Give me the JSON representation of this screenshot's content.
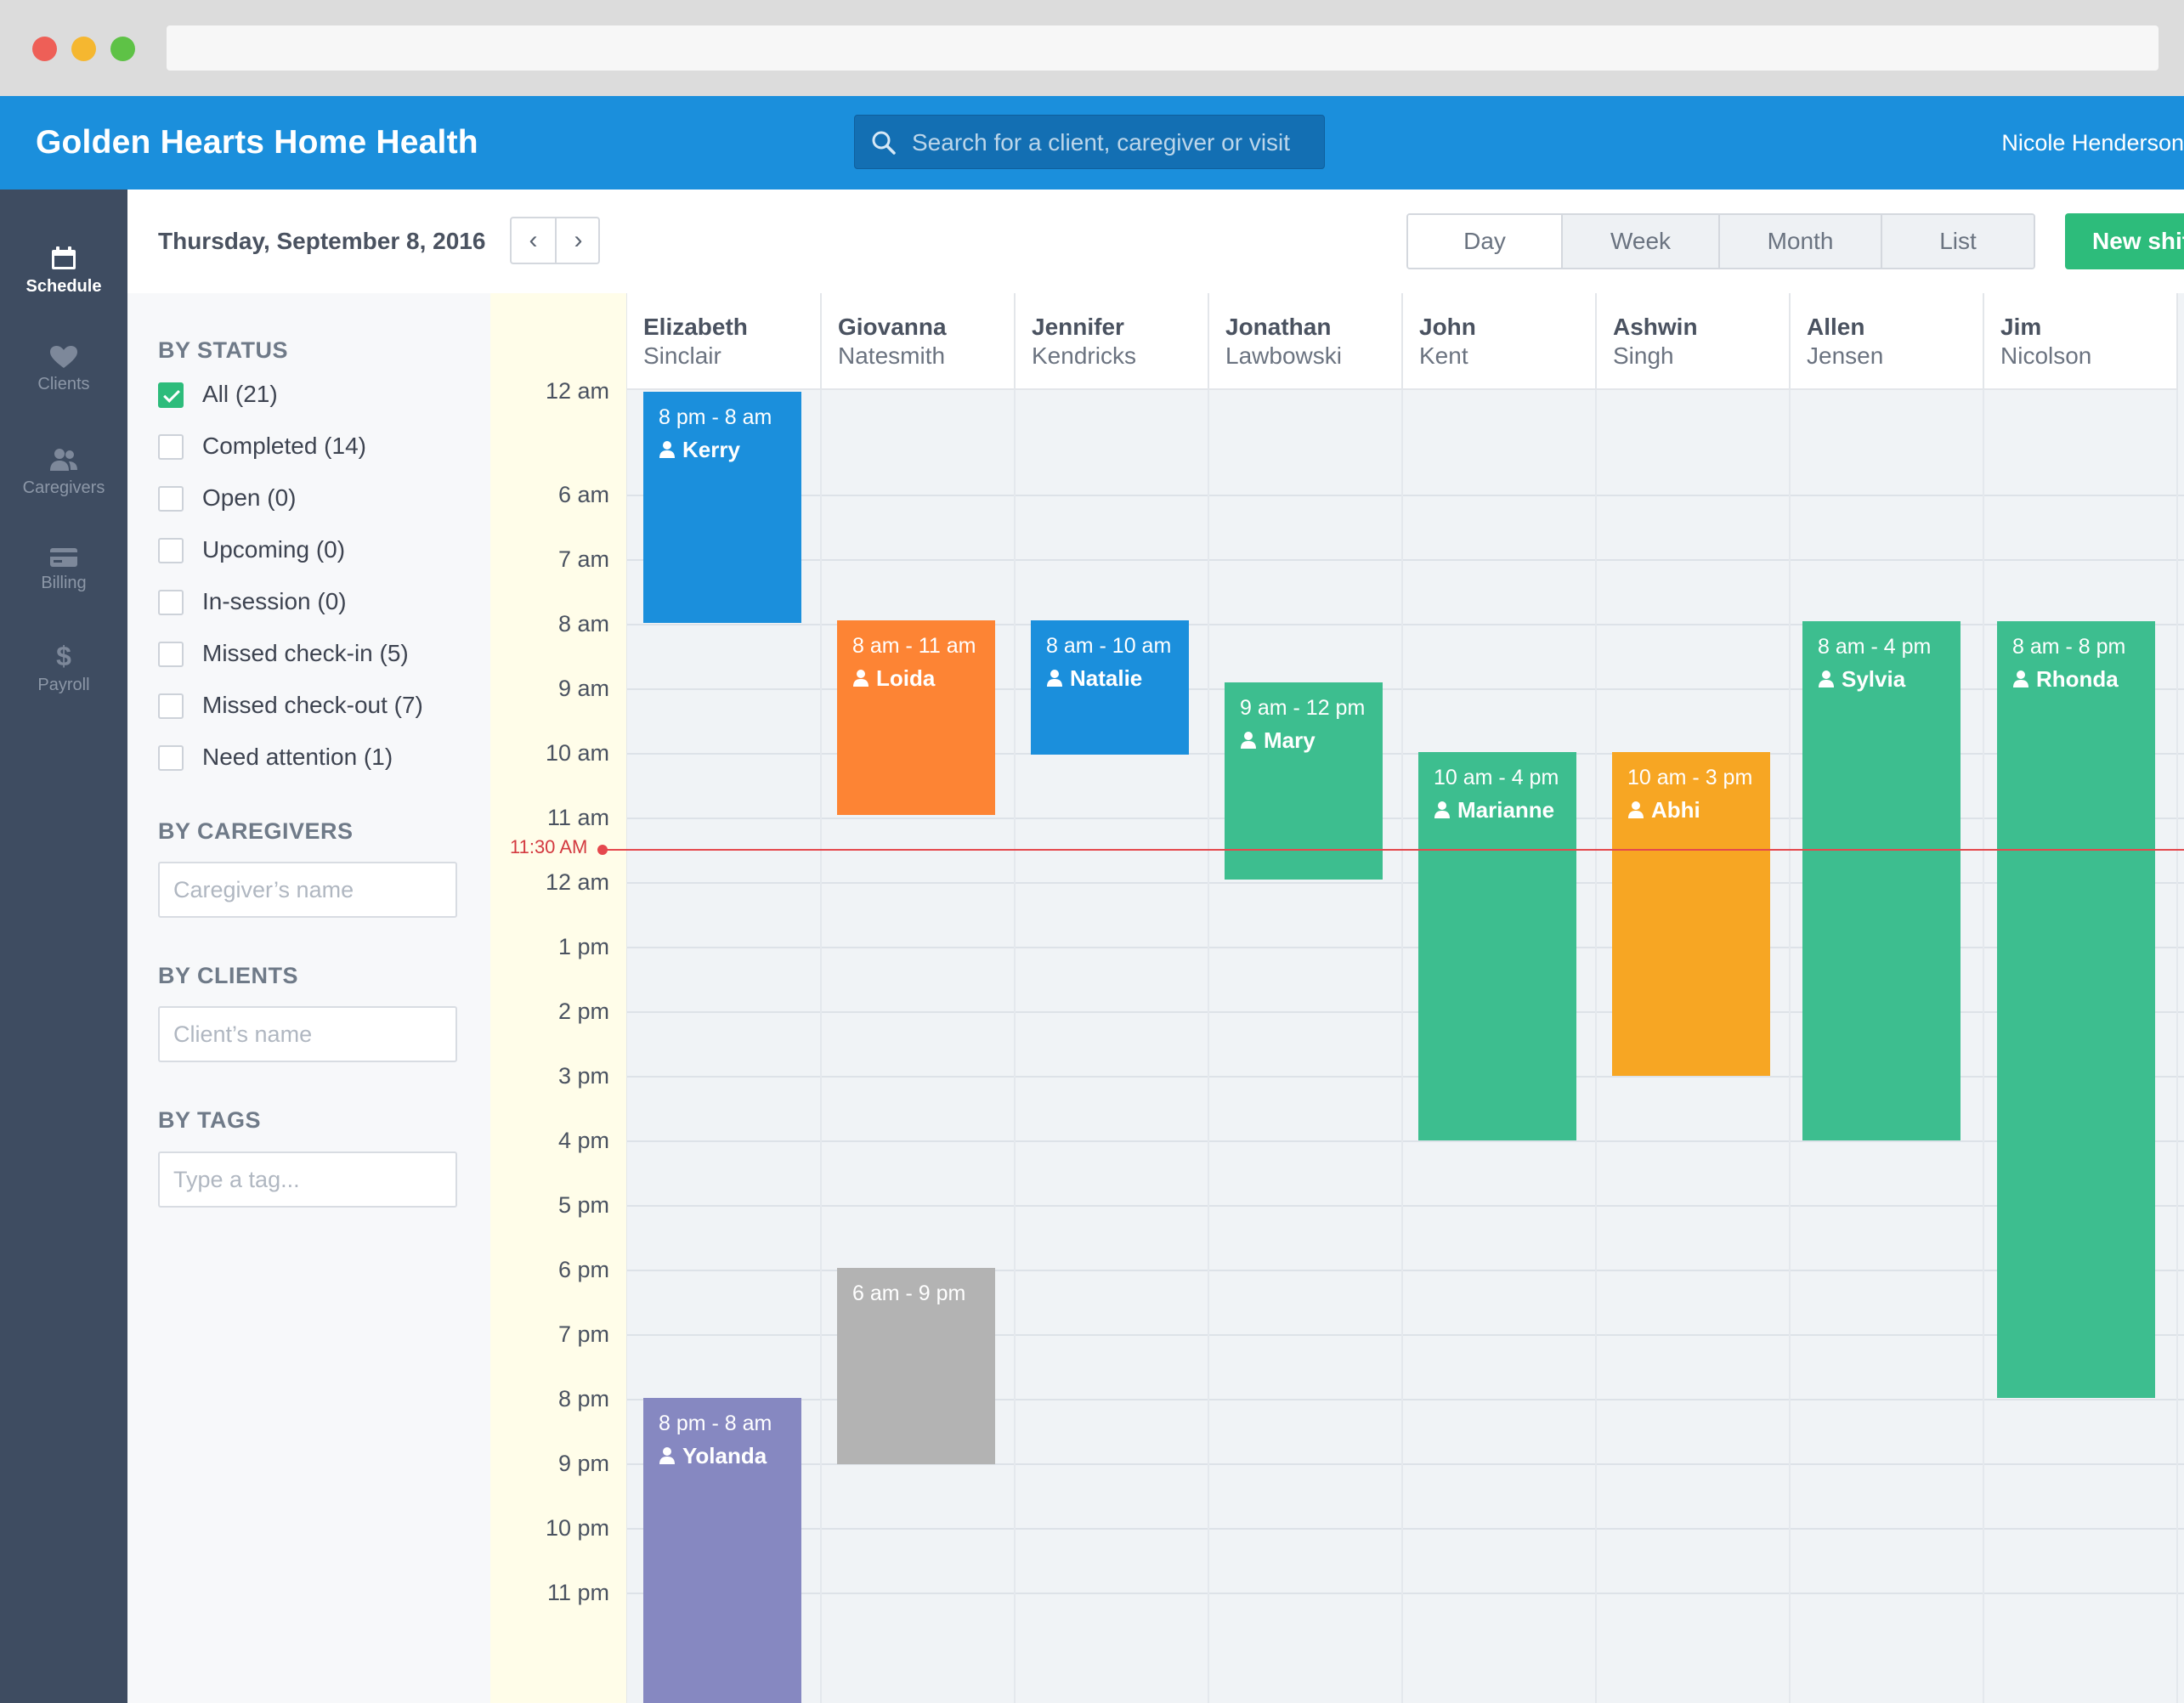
{
  "app": {
    "title": "Golden Hearts Home Health",
    "user_name": "Nicole Henderson"
  },
  "search": {
    "placeholder": "Search for a client, caregiver or visit"
  },
  "nav": [
    {
      "label": "Schedule",
      "icon": "calendar-icon"
    },
    {
      "label": "Clients",
      "icon": "heart-icon"
    },
    {
      "label": "Caregivers",
      "icon": "users-icon"
    },
    {
      "label": "Billing",
      "icon": "credit-card-icon"
    },
    {
      "label": "Payroll",
      "icon": "dollar-icon"
    }
  ],
  "toolbar": {
    "date": "Thursday, September 8, 2016",
    "views": [
      "Day",
      "Week",
      "Month",
      "List"
    ],
    "new_shift_label": "New shift"
  },
  "filters": {
    "status_heading": "BY STATUS",
    "statuses": [
      {
        "label": "All (21)",
        "checked": true
      },
      {
        "label": "Completed (14)",
        "checked": false
      },
      {
        "label": "Open (0)",
        "checked": false
      },
      {
        "label": "Upcoming (0)",
        "checked": false
      },
      {
        "label": "In-session (0)",
        "checked": false
      },
      {
        "label": "Missed check-in (5)",
        "checked": false
      },
      {
        "label": "Missed check-out (7)",
        "checked": false
      },
      {
        "label": "Need attention (1)",
        "checked": false
      }
    ],
    "caregivers_heading": "BY CAREGIVERS",
    "caregiver_placeholder": "Caregiver’s name",
    "clients_heading": "BY CLIENTS",
    "client_placeholder": "Client’s name",
    "tags_heading": "BY TAGS",
    "tag_placeholder": "Type a tag..."
  },
  "times": [
    "12 am",
    "6 am",
    "7 am",
    "8 am",
    "9 am",
    "10 am",
    "11 am",
    "12 am",
    "1 pm",
    "2 pm",
    "3 pm",
    "4 pm",
    "5 pm",
    "6 pm",
    "7 pm",
    "8 pm",
    "9 pm",
    "10 pm",
    "11 pm"
  ],
  "current_time": "11:30 AM",
  "caregivers": [
    {
      "first": "Elizabeth",
      "last": "Sinclair"
    },
    {
      "first": "Giovanna",
      "last": "Natesmith"
    },
    {
      "first": "Jennifer",
      "last": "Kendricks"
    },
    {
      "first": "Jonathan",
      "last": "Lawbowski"
    },
    {
      "first": "John",
      "last": "Kent"
    },
    {
      "first": "Ashwin",
      "last": "Singh"
    },
    {
      "first": "Allen",
      "last": "Jensen"
    },
    {
      "first": "Jim",
      "last": "Nicolson"
    }
  ],
  "colors": {
    "blue": "#1b8fdc",
    "orange": "#fd8434",
    "green": "#3dbe8f",
    "amber": "#f7a623",
    "gray": "#b3b3b3",
    "purple": "#8688c1",
    "now": "#e5484d",
    "new_shift": "#2dbc7b"
  },
  "shifts": [
    {
      "time": "8 pm - 8 am",
      "client": "Kerry",
      "color": "blue"
    },
    {
      "time": "8 am - 11 am",
      "client": "Loida",
      "color": "orange"
    },
    {
      "time": "8 am - 10 am",
      "client": "Natalie",
      "color": "blue"
    },
    {
      "time": "9 am - 12 pm",
      "client": "Mary",
      "color": "green"
    },
    {
      "time": "10 am - 4 pm",
      "client": "Marianne",
      "color": "green"
    },
    {
      "time": "10 am - 3 pm",
      "client": "Abhi",
      "color": "amber"
    },
    {
      "time": "8 am - 4 pm",
      "client": "Sylvia",
      "color": "green"
    },
    {
      "time": "8 am - 8 pm",
      "client": "Rhonda",
      "color": "green"
    },
    {
      "time": "6 am - 9 pm",
      "client": "",
      "color": "gray"
    },
    {
      "time": "8 pm - 8 am",
      "client": "Yolanda",
      "color": "purple"
    }
  ]
}
